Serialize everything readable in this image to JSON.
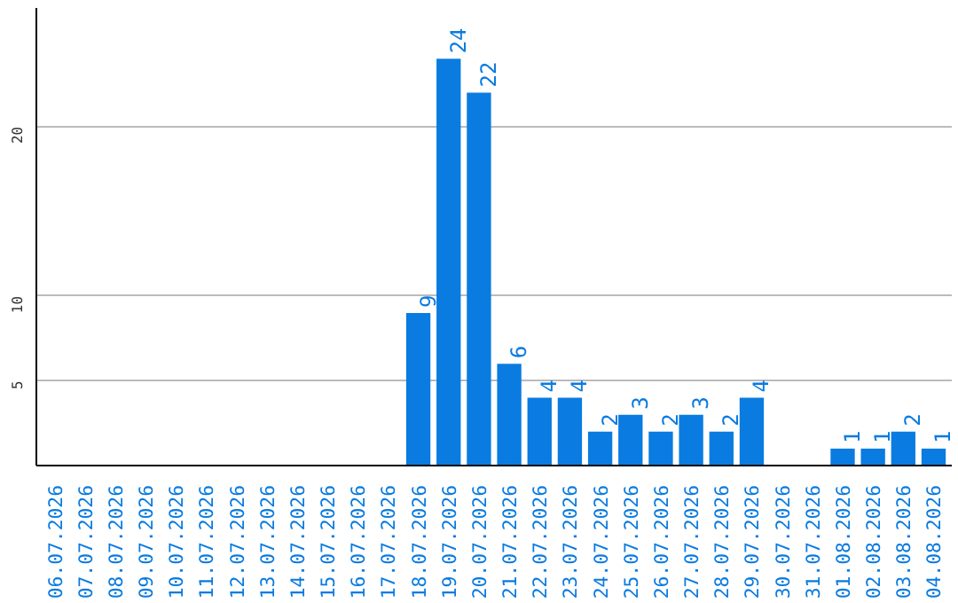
{
  "chart_data": {
    "type": "bar",
    "categories": [
      "06.07.2026",
      "07.07.2026",
      "08.07.2026",
      "09.07.2026",
      "10.07.2026",
      "11.07.2026",
      "12.07.2026",
      "13.07.2026",
      "14.07.2026",
      "15.07.2026",
      "16.07.2026",
      "17.07.2026",
      "18.07.2026",
      "19.07.2026",
      "20.07.2026",
      "21.07.2026",
      "22.07.2026",
      "23.07.2026",
      "24.07.2026",
      "25.07.2026",
      "26.07.2026",
      "27.07.2026",
      "28.07.2026",
      "29.07.2026",
      "30.07.2026",
      "31.07.2026",
      "01.08.2026",
      "02.08.2026",
      "03.08.2026",
      "04.08.2026"
    ],
    "values": [
      0,
      0,
      0,
      0,
      0,
      0,
      0,
      0,
      0,
      0,
      0,
      0,
      9,
      24,
      22,
      6,
      4,
      4,
      2,
      3,
      2,
      3,
      2,
      4,
      0,
      0,
      1,
      1,
      2,
      1
    ],
    "value_labels": [
      null,
      null,
      null,
      null,
      null,
      null,
      null,
      null,
      null,
      null,
      null,
      null,
      "9",
      "24",
      "22",
      "6",
      "4",
      "4",
      "2",
      "3",
      "2",
      "3",
      "2",
      "4",
      null,
      null,
      "1",
      "1",
      "2",
      "1"
    ],
    "color": "#0a7be0",
    "ylim": [
      0,
      27
    ],
    "yticks": [
      5,
      10,
      20
    ],
    "grid": "y"
  }
}
